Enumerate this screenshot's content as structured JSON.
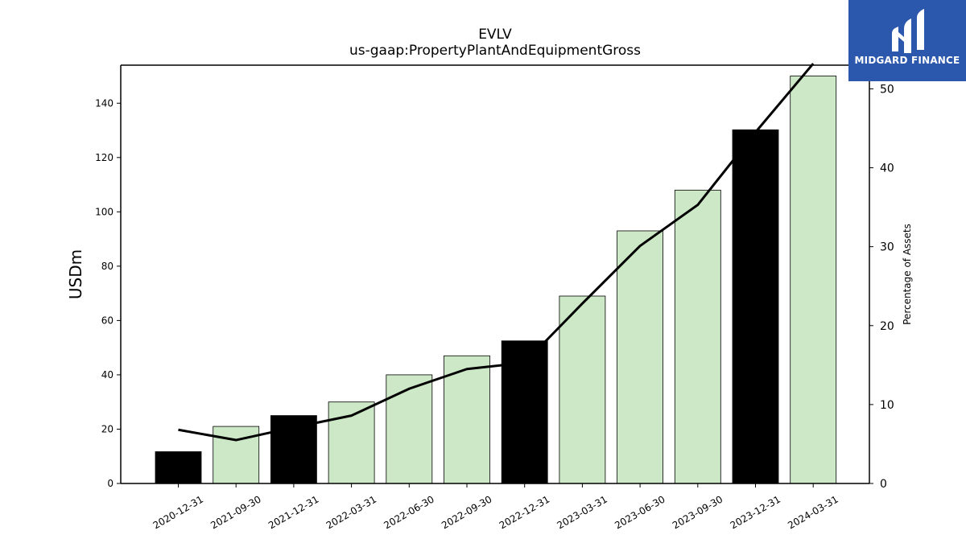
{
  "chart_data": {
    "type": "bar",
    "title": "EVLV",
    "subtitle": "us-gaap:PropertyPlantAndEquipmentGross",
    "ylabel": "USDm",
    "ylabel_right": "Percentage of Assets",
    "categories": [
      "2020-12-31",
      "2021-09-30",
      "2021-12-31",
      "2022-03-31",
      "2022-06-30",
      "2022-09-30",
      "2022-12-31",
      "2023-03-31",
      "2023-06-30",
      "2023-09-30",
      "2023-12-31",
      "2024-03-31"
    ],
    "series": [
      {
        "axis": "left",
        "kind": "bar",
        "values": [
          11.7,
          21,
          25,
          30,
          40,
          47,
          52.5,
          69,
          93,
          108,
          130.2,
          150
        ],
        "colors": [
          "#000000",
          "#cce8c6",
          "#000000",
          "#cce8c6",
          "#cce8c6",
          "#cce8c6",
          "#000000",
          "#cce8c6",
          "#cce8c6",
          "#cce8c6",
          "#000000",
          "#cce8c6"
        ]
      },
      {
        "axis": "right",
        "kind": "line",
        "color": "#000000",
        "values": [
          6.8,
          5.5,
          7.1,
          8.6,
          12.0,
          14.5,
          15.3,
          22.8,
          30.1,
          35.3,
          44.5,
          53.2
        ]
      }
    ],
    "yticks": [
      0,
      20,
      40,
      60,
      80,
      100,
      120,
      140
    ],
    "yticks_right": [
      0,
      10,
      20,
      30,
      40,
      50
    ],
    "ylim": [
      0,
      154
    ],
    "ylim_right": [
      0,
      53
    ],
    "grid": false,
    "legend": "none"
  },
  "logo": {
    "text": "MIDGARD FINANCE",
    "color": "#2b58ad"
  }
}
